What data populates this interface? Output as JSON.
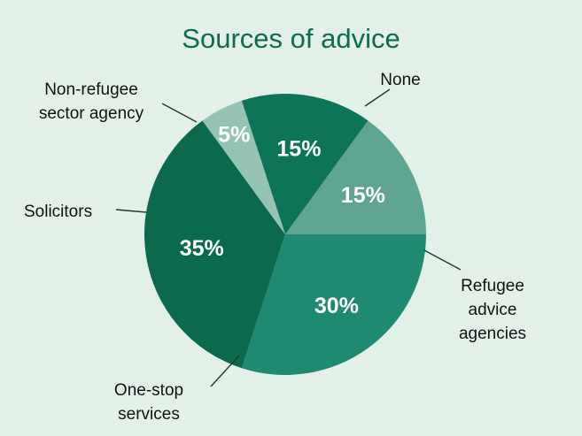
{
  "chart_data": {
    "type": "pie",
    "title": "Sources of advice",
    "slices": [
      {
        "label": "None",
        "lines": [
          "None"
        ],
        "value": 15,
        "value_label": "15%",
        "color": "#5fa592"
      },
      {
        "label": "Refugee advice agencies",
        "lines": [
          "Refugee",
          "advice",
          "agencies"
        ],
        "value": 30,
        "value_label": "30%",
        "color": "#1f8a72"
      },
      {
        "label": "One-stop services",
        "lines": [
          "One-stop",
          "services"
        ],
        "value": 35,
        "value_label": "35%",
        "color": "#0b6a4e"
      },
      {
        "label": "Solicitors",
        "lines": [
          "Solicitors"
        ],
        "value": 5,
        "value_label": "5%",
        "color": "#95c4b5"
      },
      {
        "label": "Non-refugee sector agency",
        "lines": [
          "Non-refugee",
          "sector agency"
        ],
        "value": 15,
        "value_label": "15%",
        "color": "#0e7457"
      }
    ],
    "start_angle_deg": 36,
    "direction": "clockwise"
  }
}
